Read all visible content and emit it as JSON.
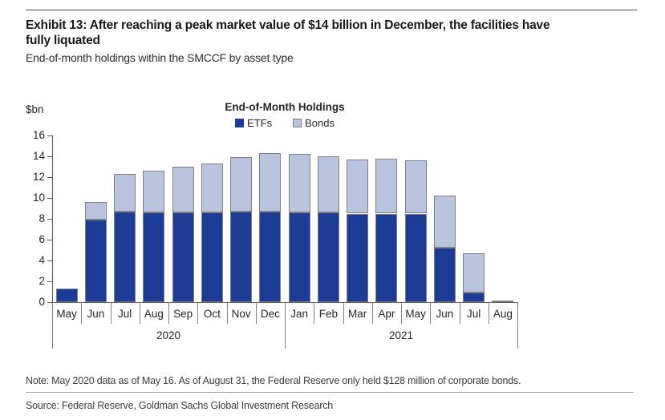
{
  "header": {
    "title_line1": "Exhibit 13: After reaching a peak market value of $14 billion in December, the facilities have",
    "title_line2": "fully liquated",
    "subtitle": "End-of-month holdings within the SMCCF by asset type"
  },
  "chart_data": {
    "type": "bar",
    "stacked": true,
    "title": "End-of-Month Holdings",
    "y_axis_label": "$bn",
    "ylim": [
      0,
      16
    ],
    "y_ticks": [
      0,
      2,
      4,
      6,
      8,
      10,
      12,
      14,
      16
    ],
    "grid": false,
    "legend_position": "top",
    "categories": [
      "May",
      "Jun",
      "Jul",
      "Aug",
      "Sep",
      "Oct",
      "Nov",
      "Dec",
      "Jan",
      "Feb",
      "Mar",
      "Apr",
      "May",
      "Jun",
      "Jul",
      "Aug"
    ],
    "year_groups": [
      {
        "label": "2020",
        "start": 0,
        "count": 8
      },
      {
        "label": "2021",
        "start": 8,
        "count": 8
      }
    ],
    "series": [
      {
        "name": "ETFs",
        "color": "#1b3b94",
        "values": [
          1.3,
          7.9,
          8.7,
          8.6,
          8.6,
          8.6,
          8.7,
          8.7,
          8.6,
          8.6,
          8.5,
          8.5,
          8.5,
          5.2,
          0.9,
          0.0
        ]
      },
      {
        "name": "Bonds",
        "color": "#b9c5de",
        "values": [
          0.0,
          1.7,
          3.6,
          4.0,
          4.4,
          4.7,
          5.2,
          5.6,
          5.6,
          5.4,
          5.2,
          5.3,
          5.1,
          5.0,
          3.8,
          0.13
        ]
      }
    ],
    "totals": [
      1.3,
      9.6,
      12.3,
      12.6,
      13.0,
      13.3,
      13.9,
      14.3,
      14.2,
      14.0,
      13.7,
      13.8,
      13.6,
      10.2,
      4.7,
      0.13
    ]
  },
  "footer": {
    "note": "Note: May 2020 data as of May 16. As of August 31, the Federal Reserve only held $128 million of corporate bonds.",
    "source": "Source: Federal Reserve, Goldman Sachs Global Investment Research"
  },
  "colors": {
    "etf": "#1b3b94",
    "bonds": "#b9c5de",
    "bar_border": "#808080",
    "axis": "#595959"
  }
}
